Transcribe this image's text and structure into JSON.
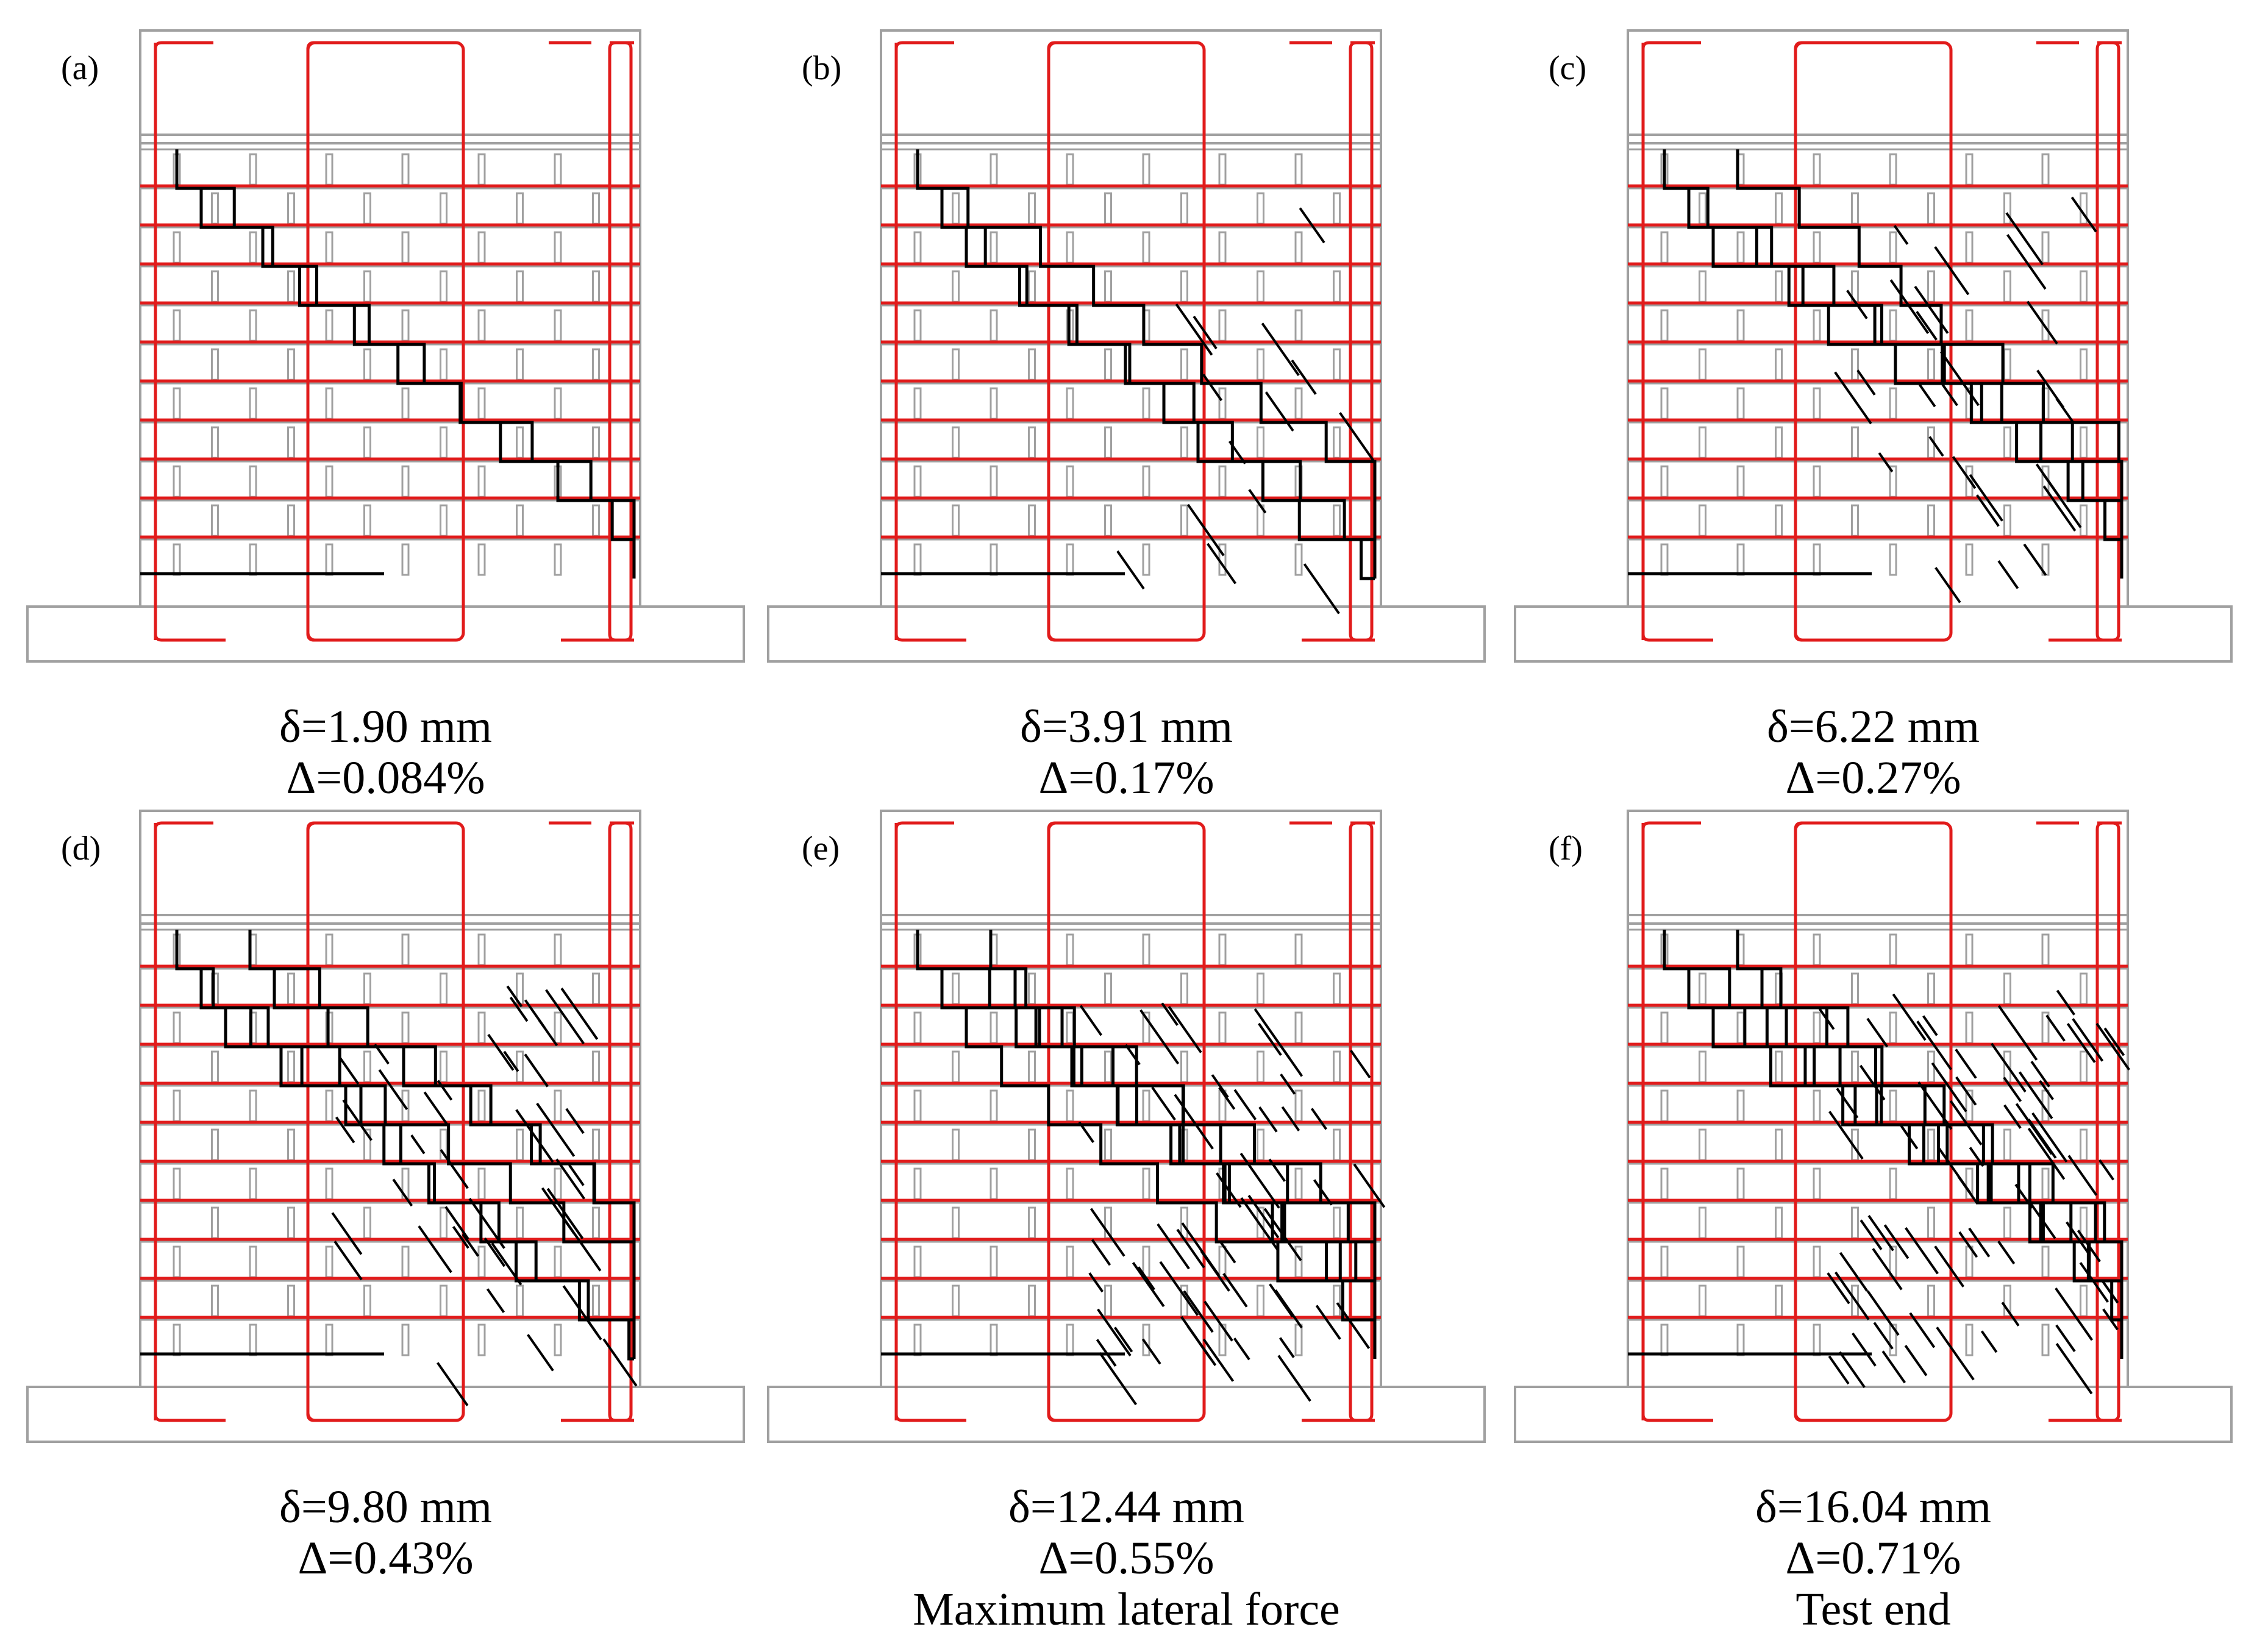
{
  "figure": {
    "panels": [
      {
        "label": "(a)",
        "disp": "δ=1.90 mm",
        "drift": "Δ=0.084%",
        "note": "",
        "stage": 0
      },
      {
        "label": "(b)",
        "disp": "δ=3.91 mm",
        "drift": "Δ=0.17%",
        "note": "",
        "stage": 1
      },
      {
        "label": "(c)",
        "disp": "δ=6.22 mm",
        "drift": "Δ=0.27%",
        "note": "",
        "stage": 2
      },
      {
        "label": "(d)",
        "disp": "δ=9.80 mm",
        "drift": "Δ=0.43%",
        "note": "",
        "stage": 3
      },
      {
        "label": "(e)",
        "disp": "δ=12.44 mm",
        "drift": "Δ=0.55%",
        "note": "Maximum lateral force",
        "stage": 4
      },
      {
        "label": "(f)",
        "disp": "δ=16.04 mm",
        "drift": "Δ=0.71%",
        "note": "Test end",
        "stage": 5
      }
    ]
  },
  "colors": {
    "masonry_outline": "#a0a0a0",
    "reinforcement": "#e11b1b",
    "crack": "#000000",
    "text": "#000000"
  }
}
